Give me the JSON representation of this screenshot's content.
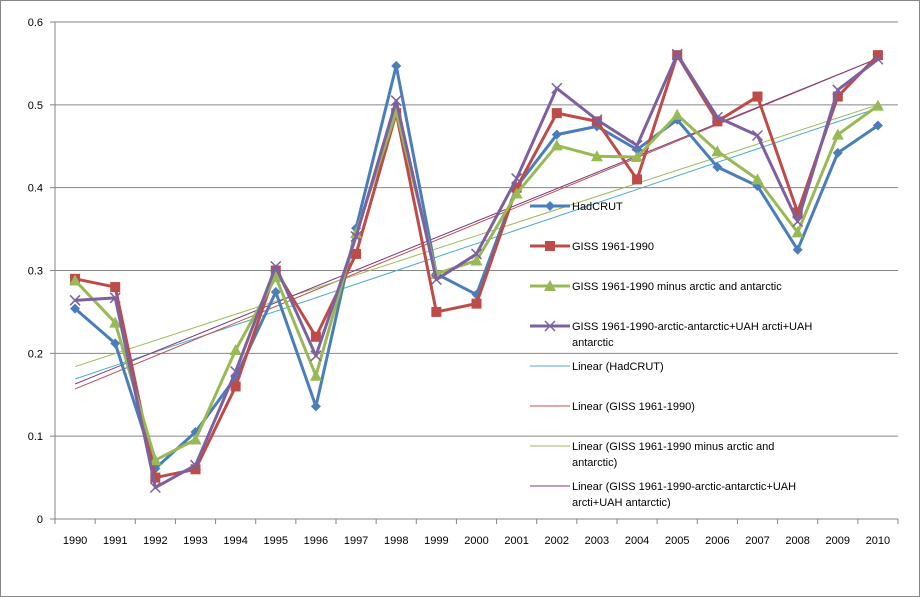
{
  "chart_data": {
    "type": "line",
    "title": "",
    "xlabel": "",
    "ylabel": "",
    "ylim": [
      0,
      0.6
    ],
    "yticks": [
      0,
      0.1,
      0.2,
      0.3,
      0.4,
      0.5,
      0.6
    ],
    "ytick_labels": [
      "0",
      "0.1",
      "0.2",
      "0.3",
      "0.4",
      "0.5",
      "0.6"
    ],
    "grid": "horizontal",
    "legend_position": "right",
    "categories": [
      "1990",
      "1991",
      "1992",
      "1993",
      "1994",
      "1995",
      "1996",
      "1997",
      "1998",
      "1999",
      "2000",
      "2001",
      "2002",
      "2003",
      "2004",
      "2005",
      "2006",
      "2007",
      "2008",
      "2009",
      "2010"
    ],
    "series": [
      {
        "name": "HadCRUT",
        "color": "#4a7ebb",
        "marker": "diamond",
        "values": [
          0.254,
          0.212,
          0.061,
          0.105,
          0.171,
          0.274,
          0.136,
          0.351,
          0.547,
          0.296,
          0.271,
          0.401,
          0.464,
          0.474,
          0.446,
          0.482,
          0.425,
          0.402,
          0.325,
          0.442,
          0.475
        ]
      },
      {
        "name": "GISS 1961-1990",
        "color": "#be4b48",
        "marker": "square",
        "values": [
          0.29,
          0.28,
          0.05,
          0.06,
          0.16,
          0.3,
          0.22,
          0.32,
          0.49,
          0.25,
          0.26,
          0.4,
          0.49,
          0.48,
          0.41,
          0.56,
          0.48,
          0.51,
          0.37,
          0.51,
          0.56
        ]
      },
      {
        "name": "GISS 1961-1990 minus arctic and antarctic",
        "color": "#98b954",
        "marker": "triangle",
        "values": [
          0.288,
          0.237,
          0.071,
          0.096,
          0.204,
          0.292,
          0.173,
          0.345,
          0.492,
          0.296,
          0.312,
          0.393,
          0.451,
          0.438,
          0.437,
          0.488,
          0.444,
          0.41,
          0.346,
          0.464,
          0.499
        ]
      },
      {
        "name": "GISS 1961-1990-arctic-antarctic+UAH arcti+UAH antarctic",
        "color": "#7d60a0",
        "marker": "x",
        "values": [
          0.264,
          0.267,
          0.038,
          0.065,
          0.178,
          0.305,
          0.197,
          0.341,
          0.505,
          0.289,
          0.32,
          0.411,
          0.52,
          0.482,
          0.451,
          0.561,
          0.485,
          0.463,
          0.359,
          0.518,
          0.555
        ]
      }
    ],
    "trendlines": [
      {
        "name": "Linear (HadCRUT)",
        "color": "#4bacc6",
        "start": 0.169,
        "end": 0.496
      },
      {
        "name": "Linear (GISS 1961-1990)",
        "color": "#c0504d",
        "start": 0.157,
        "end": 0.556
      },
      {
        "name": "Linear (GISS 1961-1990 minus arctic and antarctic)",
        "color": "#9bbb59",
        "start": 0.184,
        "end": 0.5
      },
      {
        "name": "Linear (GISS 1961-1990-arctic-antarctic+UAH arcti+UAH antarctic)",
        "color": "#7a3c7f",
        "start": 0.163,
        "end": 0.556
      }
    ],
    "legend_entries": [
      {
        "lines": [
          "HadCRUT"
        ],
        "color": "#4a7ebb",
        "marker": "diamond"
      },
      {
        "lines": [
          "GISS 1961-1990"
        ],
        "color": "#be4b48",
        "marker": "square"
      },
      {
        "lines": [
          "GISS 1961-1990 minus arctic and antarctic"
        ],
        "color": "#98b954",
        "marker": "triangle"
      },
      {
        "lines": [
          "GISS 1961-1990-arctic-antarctic+UAH arcti+UAH",
          "antarctic"
        ],
        "color": "#7d60a0",
        "marker": "x"
      },
      {
        "lines": [
          "Linear (HadCRUT)"
        ],
        "color": "#4bacc6",
        "marker": "none"
      },
      {
        "lines": [
          "Linear (GISS 1961-1990)"
        ],
        "color": "#c0504d",
        "marker": "none"
      },
      {
        "lines": [
          "Linear (GISS 1961-1990 minus arctic and",
          "antarctic)"
        ],
        "color": "#9bbb59",
        "marker": "none"
      },
      {
        "lines": [
          "Linear (GISS 1961-1990-arctic-antarctic+UAH",
          "arcti+UAH antarctic)"
        ],
        "color": "#7a3c7f",
        "marker": "none"
      }
    ]
  }
}
